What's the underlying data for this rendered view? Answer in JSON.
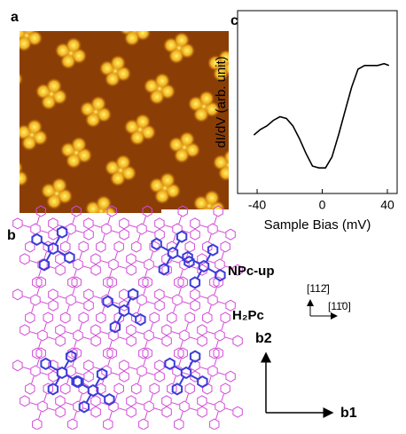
{
  "panel_labels": [
    "a",
    "b",
    "c"
  ],
  "chart_data": {
    "type": "line",
    "x_label": "Sample Bias (mV)",
    "y_label": "dI/dV (arb. unit)",
    "x": [
      -42,
      -38,
      -34,
      -30,
      -26,
      -22,
      -18,
      -14,
      -10,
      -6,
      -2,
      2,
      6,
      10,
      14,
      18,
      22,
      26,
      30,
      34,
      38,
      41
    ],
    "series": [
      {
        "color": "#000000",
        "values": [
          0.32,
          0.35,
          0.37,
          0.4,
          0.42,
          0.41,
          0.37,
          0.3,
          0.22,
          0.15,
          0.14,
          0.14,
          0.2,
          0.32,
          0.45,
          0.58,
          0.68,
          0.7,
          0.7,
          0.7,
          0.71,
          0.7
        ]
      }
    ],
    "xlim": [
      -52,
      46
    ],
    "ylim": [
      0,
      1
    ],
    "xticks": [
      -40,
      0,
      40
    ]
  },
  "diagram": {
    "labels": [
      "NPc-up",
      "H₂Pc"
    ],
    "directions": [
      "[112̄]",
      "[11̄0]"
    ],
    "lattice_vectors": [
      "b2",
      "b1"
    ]
  }
}
